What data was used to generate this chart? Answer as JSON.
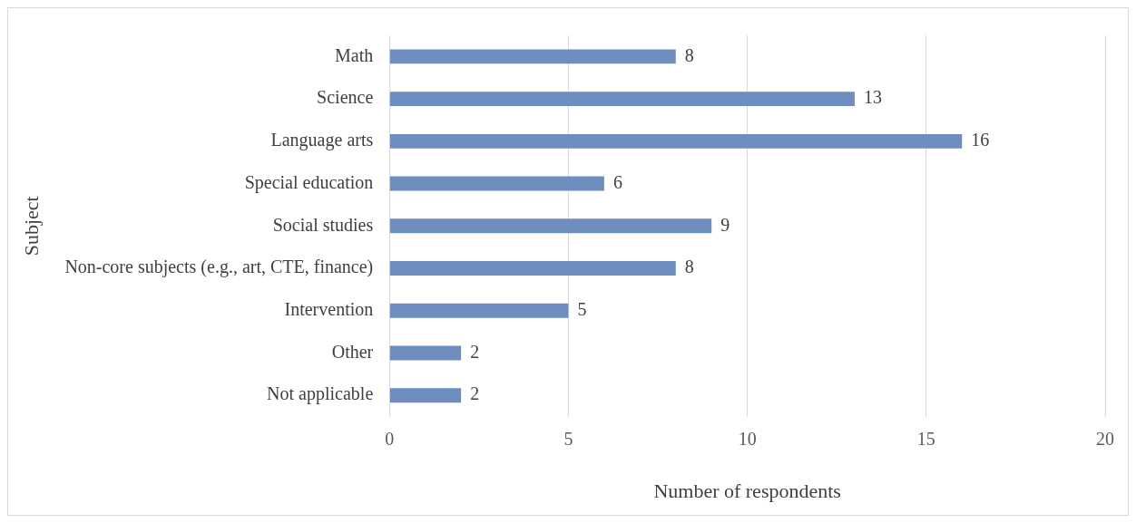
{
  "chart_data": {
    "type": "bar",
    "orientation": "horizontal",
    "categories": [
      "Math",
      "Science",
      "Language arts",
      "Special education",
      "Social studies",
      "Non-core subjects (e.g., art, CTE, finance)",
      "Intervention",
      "Other",
      "Not applicable"
    ],
    "values": [
      8,
      13,
      16,
      6,
      9,
      8,
      5,
      2,
      2
    ],
    "color": "#6e8ebf",
    "xlabel": "Number of respondents",
    "ylabel": "Subject",
    "xlim": [
      0,
      20
    ],
    "xticks": [
      0,
      5,
      10,
      15,
      20
    ],
    "grid": "x",
    "data_labels": true
  }
}
